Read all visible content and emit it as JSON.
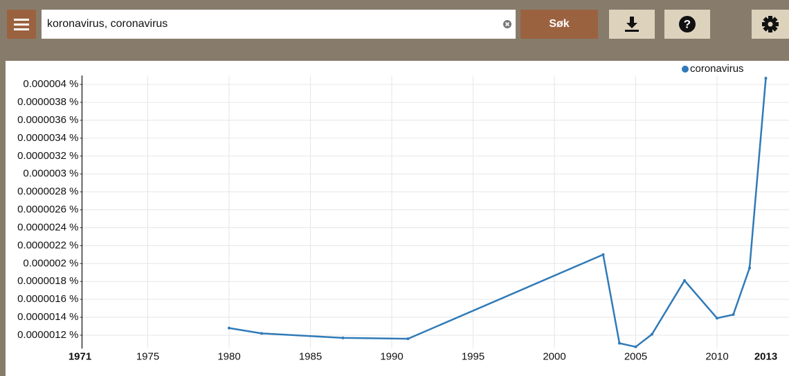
{
  "toolbar": {
    "search_value": "koronavirus, coronavirus",
    "search_button": "Søk"
  },
  "chart_data": {
    "type": "line",
    "x": [
      1980,
      1982,
      1987,
      1991,
      2003,
      2004,
      2005,
      2006,
      2008,
      2010,
      2011,
      2012,
      2013
    ],
    "series": [
      {
        "name": "coronavirus",
        "color": "#2f7ab8",
        "values": [
          1.28e-06,
          1.22e-06,
          1.17e-06,
          1.16e-06,
          2.1e-06,
          1.11e-06,
          1.07e-06,
          1.21e-06,
          1.81e-06,
          1.39e-06,
          1.43e-06,
          1.95e-06,
          4.07e-06
        ]
      }
    ],
    "xlim": [
      1971,
      2013
    ],
    "xticks": [
      1971,
      1975,
      1980,
      1985,
      1990,
      1995,
      2000,
      2005,
      2010,
      2013
    ],
    "ylim": [
      1.05e-06,
      4.1e-06
    ],
    "yticks": [
      {
        "value": 1.2e-06,
        "label": "0.0000012 %"
      },
      {
        "value": 1.4e-06,
        "label": "0.0000014 %"
      },
      {
        "value": 1.6e-06,
        "label": "0.0000016 %"
      },
      {
        "value": 1.8e-06,
        "label": "0.0000018 %"
      },
      {
        "value": 2e-06,
        "label": "0.000002 %"
      },
      {
        "value": 2.2e-06,
        "label": "0.0000022 %"
      },
      {
        "value": 2.4e-06,
        "label": "0.0000024 %"
      },
      {
        "value": 2.6e-06,
        "label": "0.0000026 %"
      },
      {
        "value": 2.8e-06,
        "label": "0.0000028 %"
      },
      {
        "value": 3e-06,
        "label": "0.000003 %"
      },
      {
        "value": 3.2e-06,
        "label": "0.0000032 %"
      },
      {
        "value": 3.4e-06,
        "label": "0.0000034 %"
      },
      {
        "value": 3.6e-06,
        "label": "0.0000036 %"
      },
      {
        "value": 3.8e-06,
        "label": "0.0000038 %"
      },
      {
        "value": 4e-06,
        "label": "0.000004 %"
      }
    ],
    "grid": true,
    "legend": "top-right"
  }
}
